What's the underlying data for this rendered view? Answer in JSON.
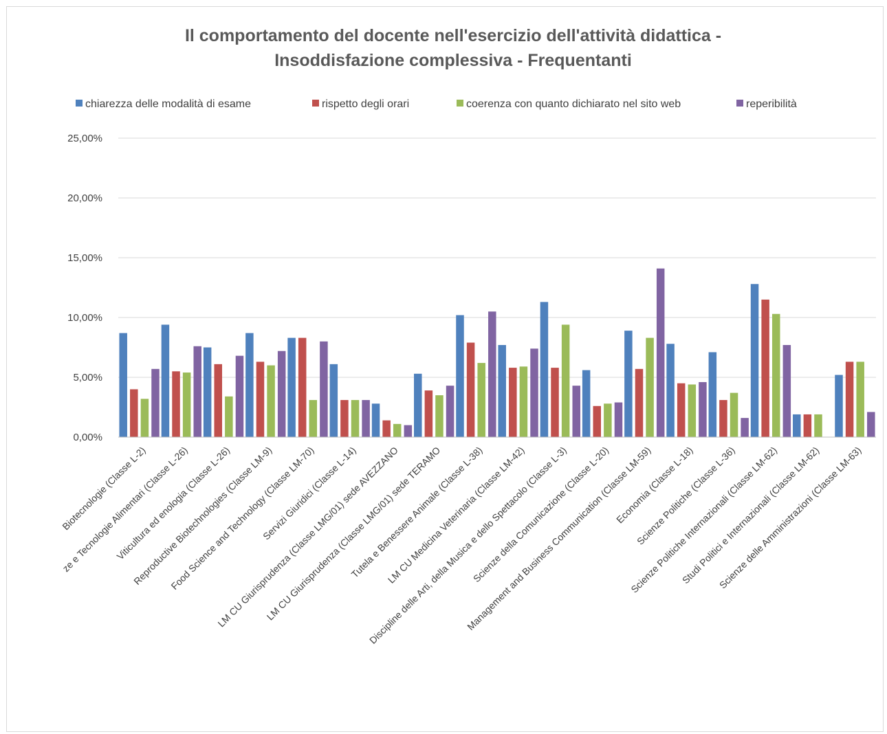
{
  "chart_data": {
    "type": "bar",
    "title": [
      "Il comportamento del docente nell'esercizio dell'attività didattica -",
      "Insoddisfazione complessiva - Frequentanti"
    ],
    "categories": [
      "Biotecnologie (Classe L-2)",
      "ze e Tecnologie Alimentari (Classe L-26)",
      "Viticultura ed enologia (Classe L-26)",
      "Reproductive Biotechnologies (Classe LM-9)",
      "Food Science and Technology (Classe LM-70)",
      "Servizi Giuridici (Classe L-14)",
      "LM CU  Giurisprudenza (Classe LMG/01) sede AVEZZANO",
      "LM CU Giurisprudenza (Classe LMG/01) sede TERAMO",
      "Tutela e Benessere Animale (Classe L-38)",
      "LM CU Medicina Veterinaria (Classe LM-42)",
      "Discipline delle Arti, della Musica e dello Spettacolo (Classe L-3)",
      "Scienze della Comunicazione (Classe L-20)",
      "Management and Business Communication (Classe LM-59)",
      "Economia (Classe L-18)",
      "Scienze Politiche (Classe L-36)",
      "Scienze Politiche Internazionali (Classe LM-62)",
      "Studi Politici e Internazionali (Classe LM-62)",
      "Scienze delle Amministrazioni (Classe LM-63)"
    ],
    "series": [
      {
        "name": "chiarezza delle modalità di esame",
        "color": "#4f81bd",
        "values": [
          8.7,
          9.4,
          7.5,
          8.7,
          8.3,
          6.1,
          2.8,
          5.3,
          10.2,
          7.7,
          11.3,
          5.6,
          8.9,
          7.8,
          7.1,
          12.8,
          1.9,
          5.2
        ]
      },
      {
        "name": "rispetto degli orari",
        "color": "#c0504d",
        "values": [
          4.0,
          5.5,
          6.1,
          6.3,
          8.3,
          3.1,
          1.4,
          3.9,
          7.9,
          5.8,
          5.8,
          2.6,
          5.7,
          4.5,
          3.1,
          11.5,
          1.9,
          6.3
        ]
      },
      {
        "name": "coerenza con quanto dichiarato nel sito web",
        "color": "#9bbb59",
        "values": [
          3.2,
          5.4,
          3.4,
          6.0,
          3.1,
          3.1,
          1.1,
          3.5,
          6.2,
          5.9,
          9.4,
          2.8,
          8.3,
          4.4,
          3.7,
          10.3,
          1.9,
          6.3
        ]
      },
      {
        "name": "reperibilità",
        "color": "#8064a2",
        "values": [
          5.7,
          7.6,
          6.8,
          7.2,
          8.0,
          3.1,
          1.0,
          4.3,
          10.5,
          7.4,
          4.3,
          2.9,
          14.1,
          4.6,
          1.6,
          7.7,
          0,
          2.1
        ]
      }
    ],
    "y_ticks": [
      "0,00%",
      "5,00%",
      "10,00%",
      "15,00%",
      "20,00%",
      "25,00%"
    ],
    "ylim": [
      0,
      25
    ],
    "grid": true,
    "legend_position": "top",
    "colors": {
      "gridline": "#d9d9d9",
      "axis": "#bfbfbf",
      "title": "#595959",
      "text": "#404040"
    }
  }
}
